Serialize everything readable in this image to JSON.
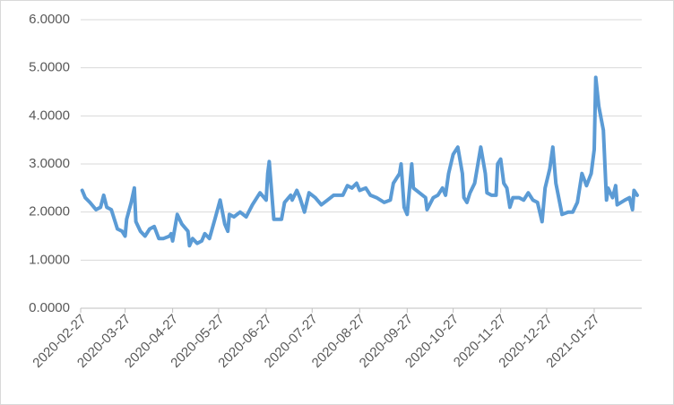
{
  "chart_data": {
    "type": "line",
    "x": [
      "2020-02-28",
      "2020-03-01",
      "2020-03-04",
      "2020-03-08",
      "2020-03-11",
      "2020-03-13",
      "2020-03-15",
      "2020-03-18",
      "2020-03-22",
      "2020-03-25",
      "2020-03-27",
      "2020-03-28",
      "2020-03-31",
      "2020-04-02",
      "2020-04-03",
      "2020-04-06",
      "2020-04-09",
      "2020-04-12",
      "2020-04-15",
      "2020-04-18",
      "2020-04-21",
      "2020-04-25",
      "2020-04-26",
      "2020-04-27",
      "2020-04-30",
      "2020-05-03",
      "2020-05-07",
      "2020-05-08",
      "2020-05-10",
      "2020-05-13",
      "2020-05-16",
      "2020-05-18",
      "2020-05-21",
      "2020-05-25",
      "2020-05-28",
      "2020-05-31",
      "2020-06-02",
      "2020-06-03",
      "2020-06-06",
      "2020-06-10",
      "2020-06-14",
      "2020-06-18",
      "2020-06-23",
      "2020-06-27",
      "2020-06-28",
      "2020-06-29",
      "2020-07-02",
      "2020-07-07",
      "2020-07-09",
      "2020-07-13",
      "2020-07-14",
      "2020-07-17",
      "2020-07-19",
      "2020-07-22",
      "2020-07-25",
      "2020-07-29",
      "2020-08-02",
      "2020-08-06",
      "2020-08-10",
      "2020-08-16",
      "2020-08-19",
      "2020-08-22",
      "2020-08-25",
      "2020-08-27",
      "2020-08-31",
      "2020-09-03",
      "2020-09-07",
      "2020-09-12",
      "2020-09-16",
      "2020-09-18",
      "2020-09-22",
      "2020-09-23",
      "2020-09-25",
      "2020-09-27",
      "2020-09-30",
      "2020-10-01",
      "2020-10-05",
      "2020-10-09",
      "2020-10-10",
      "2020-10-14",
      "2020-10-17",
      "2020-10-20",
      "2020-10-22",
      "2020-10-24",
      "2020-10-27",
      "2020-10-30",
      "2020-11-02",
      "2020-11-03",
      "2020-11-05",
      "2020-11-07",
      "2020-11-10",
      "2020-11-14",
      "2020-11-17",
      "2020-11-18",
      "2020-11-21",
      "2020-11-24",
      "2020-11-25",
      "2020-11-27",
      "2020-11-29",
      "2020-12-01",
      "2020-12-03",
      "2020-12-05",
      "2020-12-09",
      "2020-12-12",
      "2020-12-15",
      "2020-12-18",
      "2020-12-21",
      "2020-12-24",
      "2020-12-26",
      "2020-12-29",
      "2020-12-31",
      "2021-01-02",
      "2021-01-06",
      "2021-01-10",
      "2021-01-13",
      "2021-01-16",
      "2021-01-19",
      "2021-01-22",
      "2021-01-25",
      "2021-01-27",
      "2021-01-28",
      "2021-01-30",
      "2021-02-02",
      "2021-02-04",
      "2021-02-05",
      "2021-02-08",
      "2021-02-10",
      "2021-02-11",
      "2021-02-16",
      "2021-02-19",
      "2021-02-21",
      "2021-02-22",
      "2021-02-24"
    ],
    "values": [
      2.45,
      2.3,
      2.2,
      2.05,
      2.1,
      2.35,
      2.1,
      2.05,
      1.65,
      1.6,
      1.5,
      1.85,
      2.2,
      2.5,
      1.8,
      1.6,
      1.5,
      1.65,
      1.7,
      1.45,
      1.45,
      1.5,
      1.55,
      1.4,
      1.95,
      1.75,
      1.6,
      1.3,
      1.45,
      1.35,
      1.4,
      1.55,
      1.45,
      1.9,
      2.25,
      1.75,
      1.6,
      1.95,
      1.9,
      2.0,
      1.9,
      2.15,
      2.4,
      2.25,
      2.8,
      3.05,
      1.85,
      1.85,
      2.2,
      2.35,
      2.25,
      2.45,
      2.3,
      2.0,
      2.4,
      2.3,
      2.15,
      2.25,
      2.35,
      2.35,
      2.55,
      2.5,
      2.6,
      2.45,
      2.5,
      2.35,
      2.3,
      2.2,
      2.25,
      2.6,
      2.8,
      3.0,
      2.1,
      1.95,
      3.0,
      2.5,
      2.4,
      2.3,
      2.05,
      2.3,
      2.35,
      2.5,
      2.35,
      2.8,
      3.2,
      3.35,
      2.8,
      2.3,
      2.2,
      2.4,
      2.6,
      3.35,
      2.8,
      2.4,
      2.35,
      2.35,
      3.0,
      3.1,
      2.6,
      2.5,
      2.1,
      2.3,
      2.3,
      2.25,
      2.4,
      2.25,
      2.2,
      1.8,
      2.5,
      2.9,
      3.35,
      2.6,
      1.95,
      2.0,
      2.0,
      2.2,
      2.8,
      2.55,
      2.8,
      3.3,
      4.8,
      4.2,
      3.7,
      2.25,
      2.5,
      2.3,
      2.55,
      2.15,
      2.25,
      2.3,
      2.05,
      2.45,
      2.35
    ],
    "color": "#5b9bd5",
    "xlim": [
      "2020-02-27",
      "2021-02-27"
    ],
    "xticks": [
      "2020-02-27",
      "2020-03-27",
      "2020-04-27",
      "2020-05-27",
      "2020-06-27",
      "2020-07-27",
      "2020-08-27",
      "2020-09-27",
      "2020-10-27",
      "2020-11-27",
      "2020-12-27",
      "2021-01-27"
    ],
    "ylim": [
      0,
      6
    ],
    "yticks": [
      {
        "value": 0,
        "label": "0.0000"
      },
      {
        "value": 1,
        "label": "1.0000"
      },
      {
        "value": 2,
        "label": "2.0000"
      },
      {
        "value": 3,
        "label": "3.0000"
      },
      {
        "value": 4,
        "label": "4.0000"
      },
      {
        "value": 5,
        "label": "5.0000"
      },
      {
        "value": 6,
        "label": "6.0000"
      }
    ],
    "grid": true
  }
}
